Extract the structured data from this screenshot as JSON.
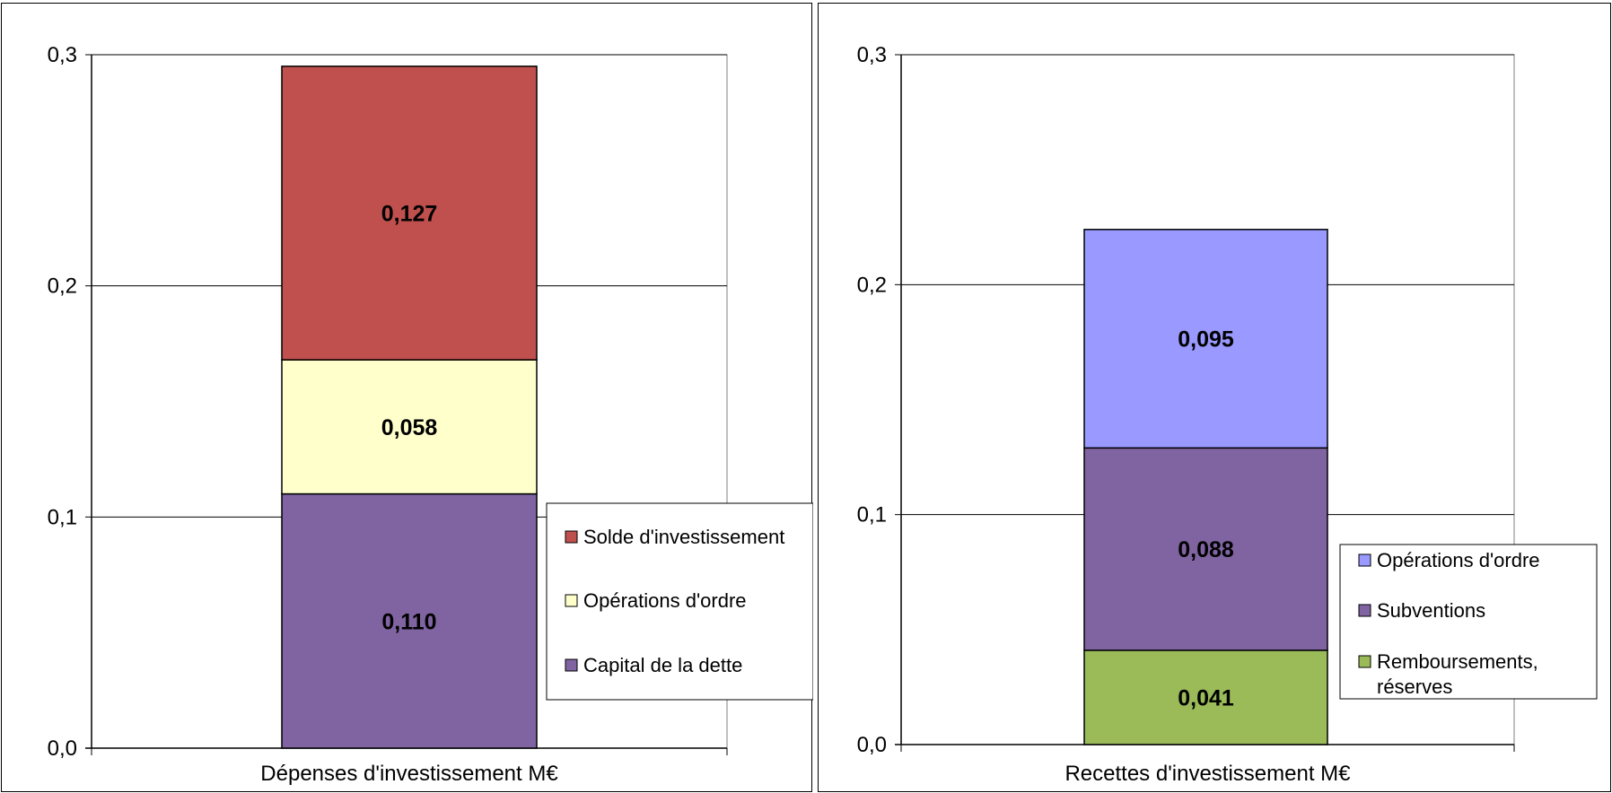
{
  "chart_data": [
    {
      "type": "bar",
      "stacked": true,
      "categories": [
        "Dépenses d'investissement M€"
      ],
      "xlabel": "Dépenses d'investissement M€",
      "ylim": [
        0,
        0.3
      ],
      "yticks": [
        "0,0",
        "0,1",
        "0,2",
        "0,3"
      ],
      "grid": true,
      "legend_position": "right",
      "series": [
        {
          "name": "Capital de la dette",
          "values": [
            0.11
          ],
          "label": "0,110",
          "color": "#8064a2"
        },
        {
          "name": "Opérations d'ordre",
          "values": [
            0.058
          ],
          "label": "0,058",
          "color": "#ffffcc"
        },
        {
          "name": "Solde d'investissement",
          "values": [
            0.127
          ],
          "label": "0,127",
          "color": "#c0504d"
        }
      ]
    },
    {
      "type": "bar",
      "stacked": true,
      "categories": [
        "Recettes d'investissement M€"
      ],
      "xlabel": "Recettes d'investissement M€",
      "ylim": [
        0,
        0.3
      ],
      "yticks": [
        "0,0",
        "0,1",
        "0,2",
        "0,3"
      ],
      "grid": true,
      "legend_position": "right",
      "series": [
        {
          "name": "Remboursements, réserves",
          "values": [
            0.041
          ],
          "label": "0,041",
          "color": "#9bbb59"
        },
        {
          "name": "Subventions",
          "values": [
            0.088
          ],
          "label": "0,088",
          "color": "#8064a2"
        },
        {
          "name": "Opérations d'ordre",
          "values": [
            0.095
          ],
          "label": "0,095",
          "color": "#9999ff"
        }
      ]
    }
  ]
}
